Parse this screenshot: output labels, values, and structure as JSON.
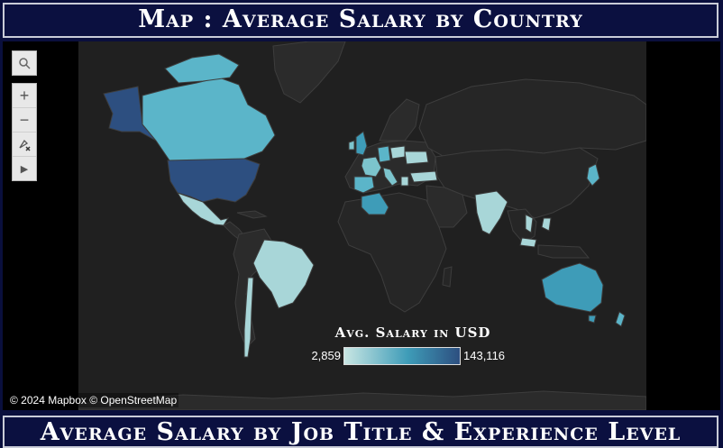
{
  "header": {
    "title": "Map : Average Salary by Country"
  },
  "footer": {
    "title": "Average Salary by Job Title & Experience Level"
  },
  "map": {
    "legend": {
      "title": "Avg. Salary in USD",
      "min_label": "2,859",
      "max_label": "143,116",
      "min_value": 2859,
      "max_value": 143116,
      "color_low": "#c9e6e3",
      "color_mid": "#3e9cb8",
      "color_high": "#2d4f80"
    },
    "attribution": "© 2024 Mapbox © OpenStreetMap",
    "colors": {
      "land": "#2b2b2b",
      "ocean": "#202020",
      "border": "#3d3d3d"
    },
    "controls": {
      "search_icon": "magnifier-icon",
      "zoom_in": "+",
      "zoom_out": "−",
      "reset_icon": "pin-reset-icon",
      "expand": "▶"
    }
  }
}
